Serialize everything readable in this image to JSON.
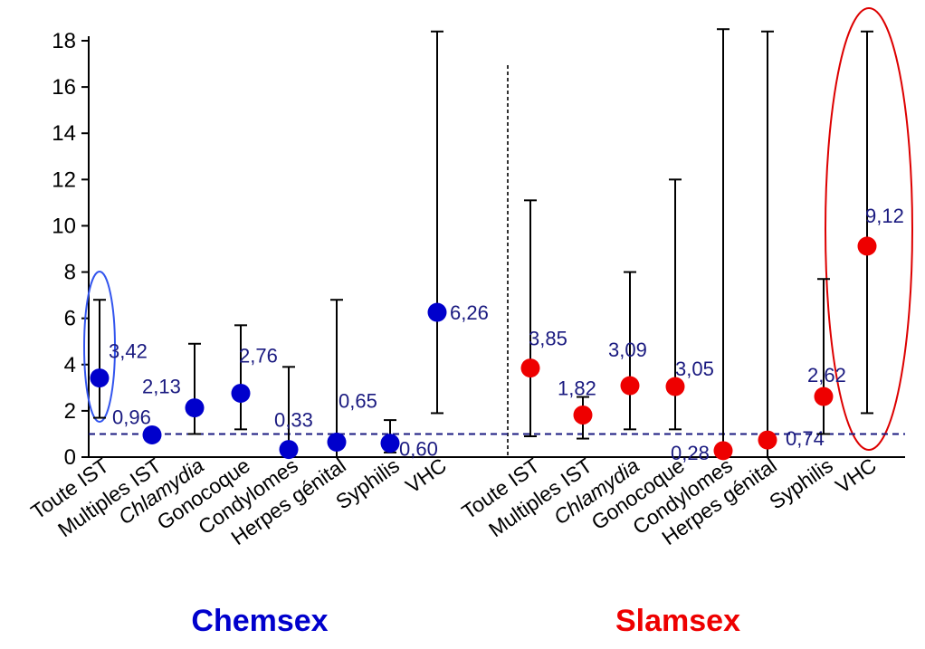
{
  "chart_data": {
    "type": "scatter",
    "y_ticks": [
      "0",
      "2",
      "4",
      "6",
      "8",
      "10",
      "12",
      "14",
      "16",
      "18"
    ],
    "ylim": [
      0,
      18.5
    ],
    "reference_line": 1,
    "grid": false,
    "groups": [
      {
        "name": "Chemsex",
        "color": "#0000cc",
        "highlight_color": "#3355ee",
        "categories": [
          "Toute IST",
          "Multiples IST",
          "Chlamydia",
          "Gonocoque",
          "Condylomes",
          "Herpes génital",
          "Syphilis",
          "VHC"
        ],
        "italic_categories": [
          "Chlamydia"
        ],
        "points": [
          {
            "category": "Toute IST",
            "y": 3.42,
            "label": "3,42",
            "ci": [
              1.7,
              6.8
            ]
          },
          {
            "category": "Multiples IST",
            "y": 0.96,
            "label": "0,96",
            "ci": null
          },
          {
            "category": "Chlamydia",
            "y": 2.13,
            "label": "2,13",
            "ci": [
              1.0,
              4.9
            ]
          },
          {
            "category": "Gonocoque",
            "y": 2.76,
            "label": "2,76",
            "ci": [
              1.2,
              5.7
            ]
          },
          {
            "category": "Condylomes",
            "y": 0.33,
            "label": "0,33",
            "ci": [
              0.0,
              3.9
            ]
          },
          {
            "category": "Herpes génital",
            "y": 0.65,
            "label": "0,65",
            "ci": [
              0.0,
              6.8
            ]
          },
          {
            "category": "Syphilis",
            "y": 0.6,
            "label": "0,60",
            "ci": [
              0.2,
              1.6
            ]
          },
          {
            "category": "VHC",
            "y": 6.26,
            "label": "6,26",
            "ci": [
              1.9,
              18.4
            ]
          }
        ]
      },
      {
        "name": "Slamsex",
        "color": "#ee0000",
        "highlight_color": "#dd0000",
        "categories": [
          "Toute IST",
          "Multiples IST",
          "Chlamydia",
          "Gonocoque",
          "Condylomes",
          "Herpes génital",
          "Syphilis",
          "VHC"
        ],
        "italic_categories": [
          "Chlamydia"
        ],
        "points": [
          {
            "category": "Toute IST",
            "y": 3.85,
            "label": "3,85",
            "ci": [
              0.9,
              11.1
            ]
          },
          {
            "category": "Multiples IST",
            "y": 1.82,
            "label": "1,82",
            "ci": [
              0.8,
              2.6
            ]
          },
          {
            "category": "Chlamydia",
            "y": 3.09,
            "label": "3,09",
            "ci": [
              1.2,
              8.0
            ]
          },
          {
            "category": "Gonocoque",
            "y": 3.05,
            "label": "3,05",
            "ci": [
              1.2,
              12.0
            ]
          },
          {
            "category": "Condylomes",
            "y": 0.28,
            "label": "0,28",
            "ci": [
              0.0,
              18.5
            ]
          },
          {
            "category": "Herpes génital",
            "y": 0.74,
            "label": "0,74",
            "ci": [
              0.0,
              18.4
            ]
          },
          {
            "category": "Syphilis",
            "y": 2.62,
            "label": "2,62",
            "ci": [
              1.0,
              7.7
            ]
          },
          {
            "category": "VHC",
            "y": 9.12,
            "label": "9,12",
            "ci": [
              1.9,
              18.4
            ]
          }
        ]
      }
    ]
  }
}
